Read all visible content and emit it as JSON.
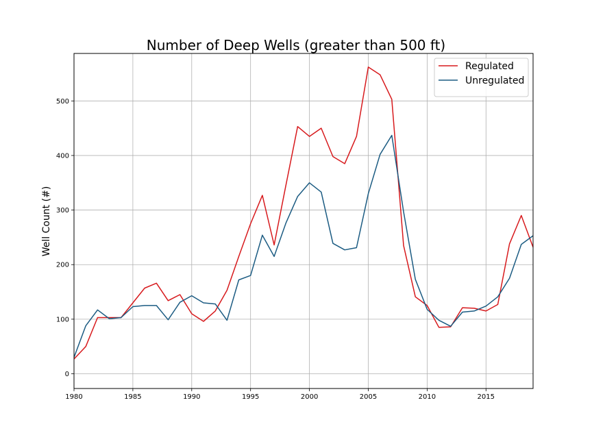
{
  "chart_data": {
    "type": "line",
    "title": "Number of Deep Wells (greater than 500 ft)",
    "xlabel": "",
    "ylabel": "Well Count (#)",
    "xlim": [
      1980,
      2019
    ],
    "ylim": [
      -27,
      587
    ],
    "x_ticks": [
      1980,
      1985,
      1990,
      1995,
      2000,
      2005,
      2010,
      2015
    ],
    "y_ticks": [
      0,
      100,
      200,
      300,
      400,
      500
    ],
    "grid": true,
    "legend_position": "top-right",
    "x": [
      1980,
      1981,
      1982,
      1983,
      1984,
      1985,
      1986,
      1987,
      1988,
      1989,
      1990,
      1991,
      1992,
      1993,
      1994,
      1995,
      1996,
      1997,
      1998,
      1999,
      2000,
      2001,
      2002,
      2003,
      2004,
      2005,
      2006,
      2007,
      2008,
      2009,
      2010,
      2011,
      2012,
      2013,
      2014,
      2015,
      2016,
      2017,
      2018,
      2019
    ],
    "series": [
      {
        "name": "Regulated",
        "color": "#d7191c",
        "values": [
          27,
          50,
          103,
          103,
          103,
          130,
          157,
          166,
          134,
          145,
          110,
          96,
          115,
          153,
          215,
          275,
          327,
          236,
          345,
          453,
          435,
          450,
          398,
          385,
          435,
          562,
          548,
          503,
          235,
          141,
          125,
          85,
          86,
          121,
          120,
          115,
          127,
          238,
          290,
          232
        ]
      },
      {
        "name": "Unregulated",
        "color": "#1b5b82",
        "values": [
          30,
          88,
          117,
          101,
          103,
          123,
          125,
          125,
          99,
          131,
          143,
          130,
          128,
          98,
          172,
          180,
          254,
          215,
          276,
          325,
          350,
          333,
          239,
          227,
          231,
          330,
          402,
          437,
          297,
          173,
          118,
          98,
          87,
          113,
          115,
          124,
          141,
          175,
          237,
          253
        ]
      }
    ]
  }
}
